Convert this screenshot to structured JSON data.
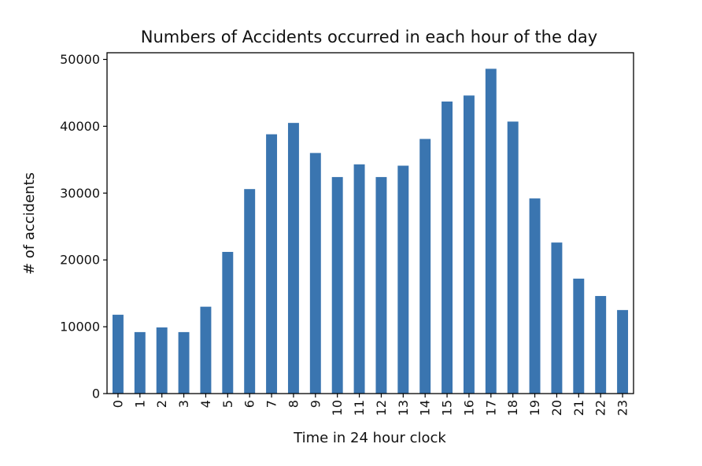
{
  "chart_data": {
    "type": "bar",
    "title": "Numbers of Accidents occurred in each hour of the day",
    "xlabel": "Time in 24 hour clock",
    "ylabel": "# of accidents",
    "categories": [
      "0",
      "1",
      "2",
      "3",
      "4",
      "5",
      "6",
      "7",
      "8",
      "9",
      "10",
      "11",
      "12",
      "13",
      "14",
      "15",
      "16",
      "17",
      "18",
      "19",
      "20",
      "21",
      "22",
      "23"
    ],
    "values": [
      11800,
      9200,
      9900,
      9200,
      13000,
      21200,
      30600,
      38800,
      40500,
      36000,
      32400,
      34300,
      32400,
      34100,
      38100,
      43700,
      44600,
      48600,
      40700,
      29200,
      22600,
      17200,
      14600,
      12500
    ],
    "ylim": [
      0,
      51000
    ],
    "yticks": [
      0,
      10000,
      20000,
      30000,
      40000,
      50000
    ],
    "bar_color": "#3a75b0",
    "grid": false,
    "legend": "none"
  }
}
